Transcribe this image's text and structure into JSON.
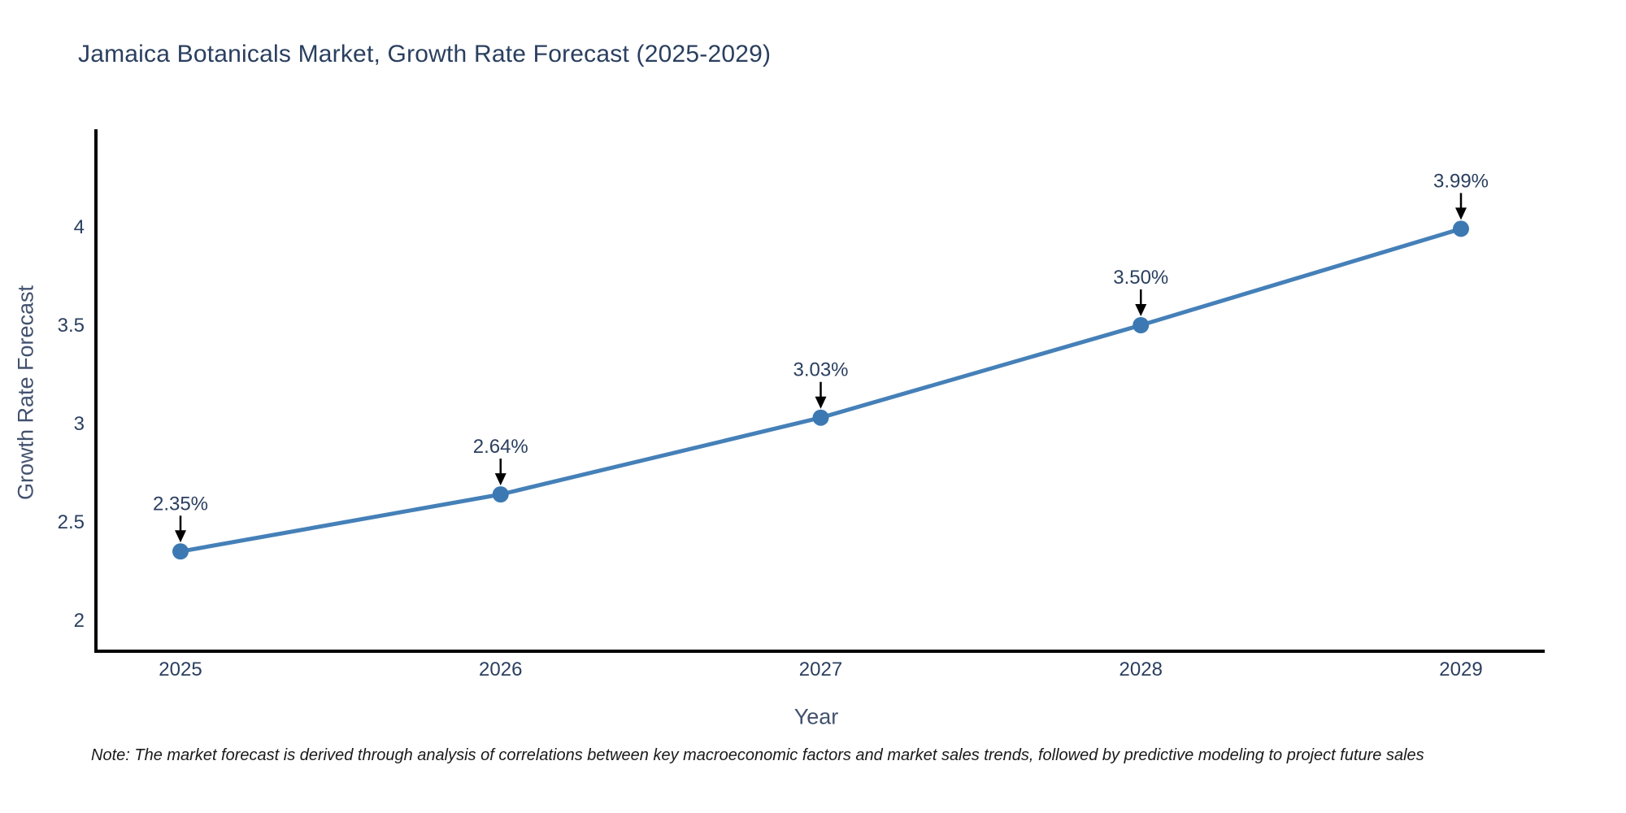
{
  "note": "Note: The market forecast is derived through analysis of correlations between key macroeconomic factors and market sales trends, followed by predictive modeling to project future sales",
  "chart_data": {
    "type": "line",
    "title": "Jamaica Botanicals Market, Growth Rate Forecast (2025-2029)",
    "xlabel": "Year",
    "ylabel": "Growth Rate Forecast",
    "x": [
      2025,
      2026,
      2027,
      2028,
      2029
    ],
    "x_tick_labels": [
      "2025",
      "2026",
      "2027",
      "2028",
      "2029"
    ],
    "series": [
      {
        "name": "Growth Rate Forecast",
        "values": [
          2.35,
          2.64,
          3.03,
          3.5,
          3.99
        ],
        "point_labels": [
          "2.35%",
          "2.64%",
          "3.03%",
          "3.50%",
          "3.99%"
        ]
      }
    ],
    "yticks": [
      2,
      2.5,
      3,
      3.5,
      4
    ],
    "ytick_labels": [
      "2",
      "2.5",
      "3",
      "3.5",
      "4"
    ],
    "ylim": [
      1.84,
      4.5
    ],
    "grid": false,
    "legend_position": "none",
    "annotation_style": "black-arrow-down-to-point",
    "colors": {
      "line": "#4580b8",
      "marker": "#3c79b2",
      "axis": "#000000",
      "tick_text": "#2a3f5f",
      "annotation_text": "#2a3f5f",
      "arrow": "#000000",
      "background": "#ffffff"
    }
  }
}
